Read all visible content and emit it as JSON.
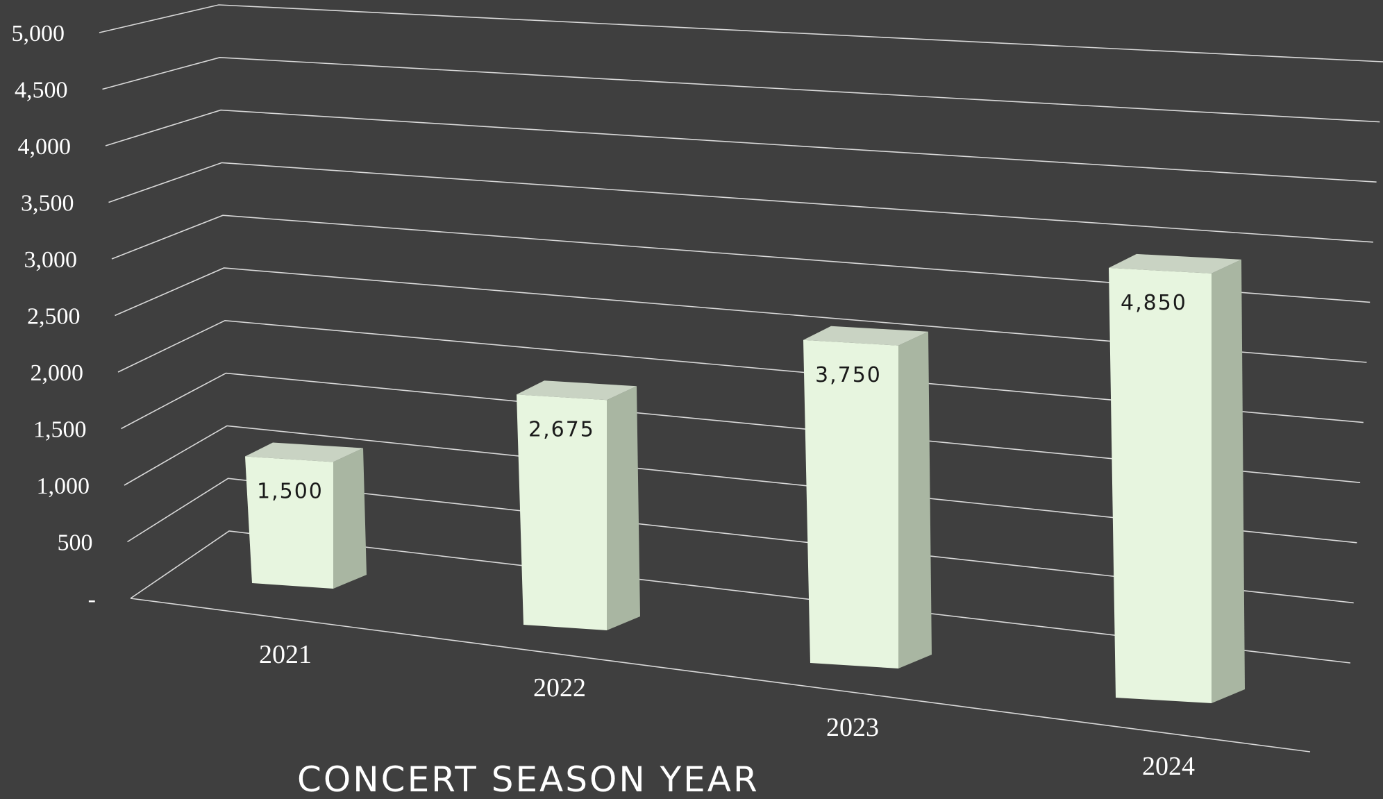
{
  "chart_data": {
    "type": "bar",
    "categories": [
      "2021",
      "2022",
      "2023",
      "2024"
    ],
    "values": [
      1500,
      2675,
      3750,
      4850
    ],
    "data_labels": [
      "1,500",
      "2,675",
      "3,750",
      "4,850"
    ],
    "y_ticks": [
      "-",
      "500",
      "1,000",
      "1,500",
      "2,000",
      "2,500",
      "3,000",
      "3,500",
      "4,000",
      "4,500",
      "5,000"
    ],
    "ylim": [
      0,
      5000
    ],
    "xlabel": "CONCERT SEASON YEAR",
    "ylabel": "",
    "title": "",
    "grid": true,
    "style": "3d-column",
    "colors": {
      "background": "#3f3f3f",
      "bar_front": "#e7f5df",
      "bar_side": "#a9b6a2",
      "bar_top": "#c9d3c3",
      "grid": "#d9d9d9",
      "text": "#ffffff",
      "data_label": "#1a1a1a"
    }
  }
}
